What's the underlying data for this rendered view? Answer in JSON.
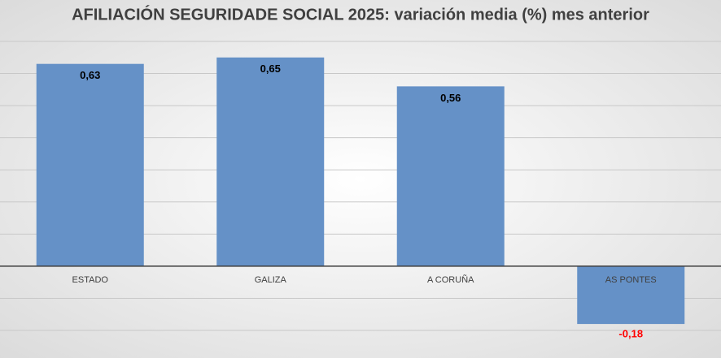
{
  "chart_data": {
    "type": "bar",
    "title": "AFILIACIÓN SEGURIDADE SOCIAL 2025: variación media (%) mes anterior",
    "categories": [
      "ESTADO",
      "GALIZA",
      "A CORUÑA",
      "AS PONTES"
    ],
    "values": [
      0.63,
      0.65,
      0.56,
      -0.18
    ],
    "value_labels": [
      "0,63",
      "0,65",
      "0,56",
      "-0,18"
    ],
    "color": "#6591c7",
    "label_color": "#000000",
    "negative_label_color": "#ff0000",
    "ylim": [
      -0.2,
      0.7
    ],
    "yticks": [
      -0.2,
      -0.1,
      0,
      0.1,
      0.2,
      0.3,
      0.4,
      0.5,
      0.6,
      0.7
    ],
    "grid": true
  }
}
